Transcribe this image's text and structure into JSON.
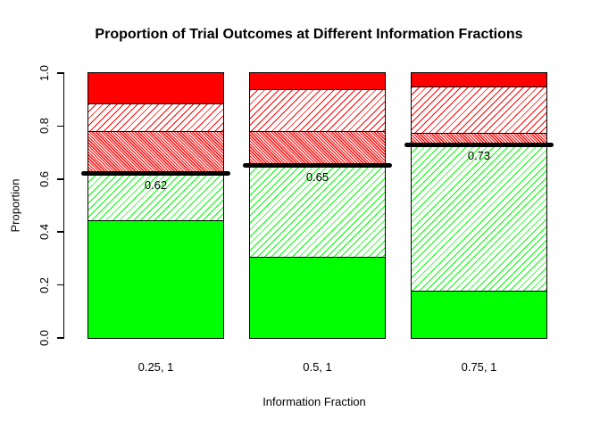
{
  "chart_data": {
    "type": "bar",
    "stacked": true,
    "title": "Proportion of Trial Outcomes at Different Information Fractions",
    "xlabel": "Information Fraction",
    "ylabel": "Proportion",
    "categories": [
      "0.25, 1",
      "0.5, 1",
      "0.75, 1"
    ],
    "y_ticks": [
      "0.0",
      "0.2",
      "0.4",
      "0.6",
      "0.8",
      "1.0"
    ],
    "ylim": [
      0,
      1
    ],
    "grid": false,
    "legend": "none",
    "series": [
      {
        "name": "green-solid",
        "pattern": "solid",
        "color": "#00ff00",
        "values": [
          0.445,
          0.305,
          0.18
        ]
      },
      {
        "name": "green-hatched",
        "pattern": "diagonal-up",
        "color": "#00ff00",
        "values": [
          0.175,
          0.345,
          0.55
        ]
      },
      {
        "name": "red-dense-hatched",
        "pattern": "diagonal-down-dense",
        "color": "#ff0000",
        "values": [
          0.16,
          0.13,
          0.045
        ]
      },
      {
        "name": "red-hatched",
        "pattern": "diagonal-up",
        "color": "#ff0000",
        "values": [
          0.105,
          0.16,
          0.175
        ]
      },
      {
        "name": "red-solid",
        "pattern": "solid",
        "color": "#ff0000",
        "values": [
          0.115,
          0.06,
          0.05
        ]
      }
    ],
    "thresholds": {
      "values": [
        0.62,
        0.65,
        0.73
      ],
      "labels": [
        "0.62",
        "0.65",
        "0.73"
      ]
    },
    "colors": {
      "green": "#00ff00",
      "red": "#ff0000",
      "threshold_line": "#000000",
      "axis": "#000000"
    }
  }
}
